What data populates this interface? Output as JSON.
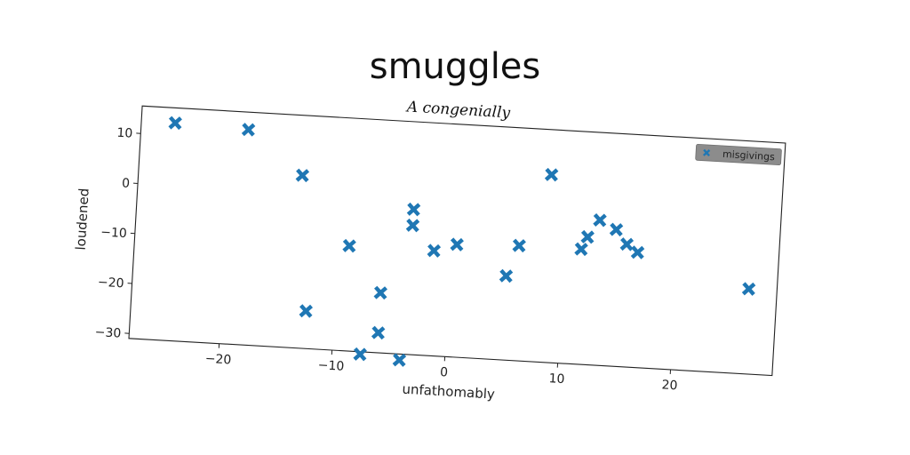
{
  "chart_data": {
    "type": "scatter",
    "title": "smuggles",
    "subtitle": "A congenially",
    "xlabel": "unfathomably",
    "ylabel": "loudened",
    "xlim": [
      -28,
      29
    ],
    "ylim": [
      -31,
      15.5
    ],
    "xticks": [
      -20,
      -10,
      0,
      10,
      20
    ],
    "yticks": [
      10,
      0,
      -10,
      -20,
      -30
    ],
    "xtick_labels": [
      "−20",
      "−10",
      "0",
      "10",
      "20"
    ],
    "ytick_labels": [
      "10",
      "0",
      "−10",
      "−20",
      "−30"
    ],
    "grid": false,
    "legend_position": "top-right",
    "series": [
      {
        "name": "misgivings",
        "color": "#1f77b4",
        "marker": "X",
        "points": [
          [
            -25,
            12.5
          ],
          [
            -18.5,
            12
          ],
          [
            -13.5,
            3.5
          ],
          [
            -12.5,
            -23.5
          ],
          [
            -9,
            -10
          ],
          [
            -6,
            -19
          ],
          [
            -6,
            -27
          ],
          [
            -7.5,
            -31.5
          ],
          [
            -3.5,
            -2
          ],
          [
            -3.5,
            -5.2
          ],
          [
            -4,
            -32.2
          ],
          [
            -1.5,
            -10
          ],
          [
            0.5,
            -8.5
          ],
          [
            5,
            -14.2
          ],
          [
            6,
            -8
          ],
          [
            8.5,
            6.5
          ],
          [
            11.5,
            -8
          ],
          [
            12,
            -5.5
          ],
          [
            13,
            -2
          ],
          [
            14.5,
            -3.7
          ],
          [
            15.5,
            -6.5
          ],
          [
            16.5,
            -8
          ],
          [
            26.5,
            -14
          ]
        ]
      }
    ]
  }
}
